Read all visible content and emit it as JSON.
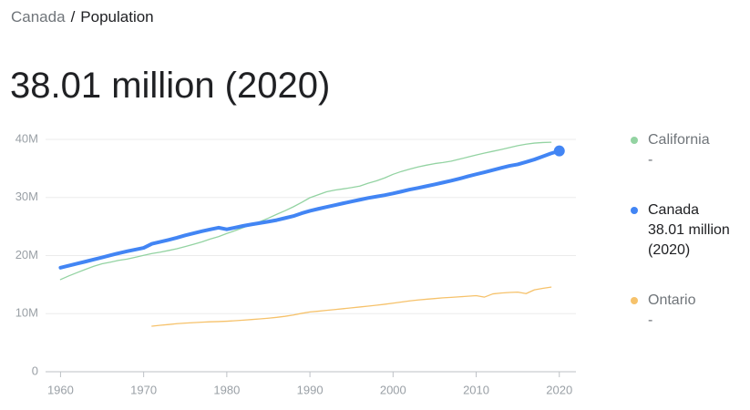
{
  "breadcrumb": {
    "items": [
      "Canada",
      "Population"
    ],
    "separator": "/"
  },
  "headline": "38.01 million (2020)",
  "chart_data": {
    "type": "line",
    "x": [
      1960,
      1961,
      1962,
      1963,
      1964,
      1965,
      1966,
      1967,
      1968,
      1969,
      1970,
      1971,
      1972,
      1973,
      1974,
      1975,
      1976,
      1977,
      1978,
      1979,
      1980,
      1981,
      1982,
      1983,
      1984,
      1985,
      1986,
      1987,
      1988,
      1989,
      1990,
      1991,
      1992,
      1993,
      1994,
      1995,
      1996,
      1997,
      1998,
      1999,
      2000,
      2001,
      2002,
      2003,
      2004,
      2005,
      2006,
      2007,
      2008,
      2009,
      2010,
      2011,
      2012,
      2013,
      2014,
      2015,
      2016,
      2017,
      2018,
      2019,
      2020
    ],
    "series": [
      {
        "name": "California",
        "legend_value": "-",
        "color": "#93d3a2",
        "values": [
          15.87,
          16.5,
          17.07,
          17.63,
          18.15,
          18.59,
          18.86,
          19.18,
          19.39,
          19.71,
          20.04,
          20.35,
          20.59,
          20.87,
          21.17,
          21.54,
          21.94,
          22.35,
          22.84,
          23.26,
          23.8,
          24.29,
          24.82,
          25.36,
          25.84,
          26.44,
          27.1,
          27.72,
          28.39,
          29.14,
          29.96,
          30.47,
          30.98,
          31.27,
          31.48,
          31.7,
          31.96,
          32.45,
          32.86,
          33.37,
          33.99,
          34.48,
          34.88,
          35.25,
          35.56,
          35.83,
          36.02,
          36.25,
          36.6,
          36.96,
          37.32,
          37.64,
          37.95,
          38.26,
          38.59,
          38.92,
          39.17,
          39.36,
          39.46,
          39.51,
          null
        ]
      },
      {
        "name": "Canada",
        "legend_value": "38.01 million (2020)",
        "color": "#4285f4",
        "values": [
          17.91,
          18.27,
          18.61,
          18.96,
          19.33,
          19.68,
          20.05,
          20.41,
          20.73,
          21.03,
          21.32,
          22.03,
          22.36,
          22.7,
          23.07,
          23.48,
          23.84,
          24.19,
          24.5,
          24.8,
          24.52,
          24.82,
          25.12,
          25.37,
          25.61,
          25.84,
          26.1,
          26.45,
          26.79,
          27.28,
          27.69,
          28.04,
          28.37,
          28.68,
          29.0,
          29.3,
          29.61,
          29.91,
          30.16,
          30.4,
          30.69,
          31.02,
          31.36,
          31.64,
          31.94,
          32.24,
          32.57,
          32.89,
          33.25,
          33.63,
          34.0,
          34.34,
          34.71,
          35.08,
          35.44,
          35.7,
          36.11,
          36.54,
          37.06,
          37.59,
          38.01
        ]
      },
      {
        "name": "Ontario",
        "legend_value": "-",
        "color": "#f6c26b",
        "values": [
          null,
          null,
          null,
          null,
          null,
          null,
          null,
          null,
          null,
          null,
          null,
          7.85,
          8.0,
          8.13,
          8.27,
          8.37,
          8.45,
          8.53,
          8.6,
          8.64,
          8.7,
          8.78,
          8.88,
          8.99,
          9.1,
          9.22,
          9.36,
          9.54,
          9.76,
          10.05,
          10.3,
          10.42,
          10.57,
          10.7,
          10.85,
          11.0,
          11.15,
          11.3,
          11.45,
          11.62,
          11.8,
          12.0,
          12.2,
          12.35,
          12.48,
          12.6,
          12.72,
          12.8,
          12.9,
          13.0,
          13.1,
          12.85,
          13.4,
          13.55,
          13.65,
          13.7,
          13.45,
          14.1,
          14.35,
          14.57,
          null
        ]
      }
    ],
    "highlight_series": "Canada",
    "xlim": [
      1958.2,
      2022
    ],
    "xticks": [
      1960,
      1970,
      1980,
      1990,
      2000,
      2010,
      2020
    ],
    "ylim": [
      0,
      40
    ],
    "yticks": [
      0,
      {
        "value": 10,
        "label": "10M"
      },
      {
        "value": 20,
        "label": "20M"
      },
      {
        "value": 30,
        "label": "30M"
      },
      {
        "value": 40,
        "label": "40M"
      }
    ],
    "grid": true
  }
}
